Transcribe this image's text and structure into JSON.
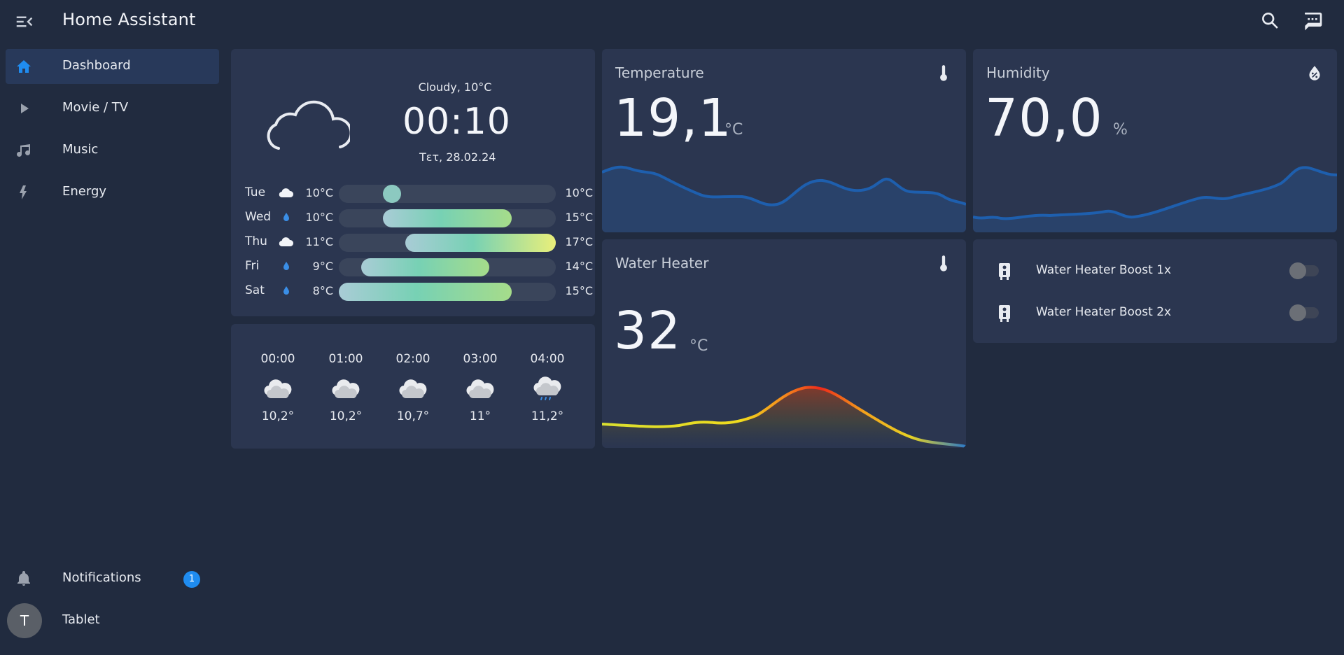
{
  "app": {
    "title": "Home Assistant"
  },
  "icons": {
    "menu": "menu-open-icon",
    "search": "search-icon",
    "assist": "chat-icon"
  },
  "sidebar": {
    "items": [
      {
        "label": "Dashboard",
        "icon": "home-icon",
        "active": true
      },
      {
        "label": "Movie / TV",
        "icon": "play-icon",
        "active": false
      },
      {
        "label": "Music",
        "icon": "music-icon",
        "active": false
      },
      {
        "label": "Energy",
        "icon": "lightning-icon",
        "active": false
      }
    ],
    "notifications": {
      "label": "Notifications",
      "count": "1"
    },
    "user": {
      "label": "Tablet",
      "initial": "T"
    }
  },
  "weather": {
    "condition": "Cloudy, 10°C",
    "time": "00:10",
    "date": "Τετ, 28.02.24",
    "forecast": [
      {
        "day": "Tue",
        "icon": "cloud-icon",
        "low": "10°C",
        "high": "10°C",
        "low_value": 10,
        "high_value": 10
      },
      {
        "day": "Wed",
        "icon": "rain-drop-icon",
        "low": "10°C",
        "high": "15°C",
        "low_value": 10,
        "high_value": 15
      },
      {
        "day": "Thu",
        "icon": "cloud-icon",
        "low": "11°C",
        "high": "17°C",
        "low_value": 11,
        "high_value": 17
      },
      {
        "day": "Fri",
        "icon": "rain-drop-icon",
        "low": "9°C",
        "high": "14°C",
        "low_value": 9,
        "high_value": 14
      },
      {
        "day": "Sat",
        "icon": "rain-drop-icon",
        "low": "8°C",
        "high": "15°C",
        "low_value": 8,
        "high_value": 15
      }
    ],
    "hourly": [
      {
        "time": "00:00",
        "icon": "cloudy-night-icon",
        "temp": "10,2°"
      },
      {
        "time": "01:00",
        "icon": "cloudy-night-icon",
        "temp": "10,2°"
      },
      {
        "time": "02:00",
        "icon": "cloudy-night-icon",
        "temp": "10,7°"
      },
      {
        "time": "03:00",
        "icon": "cloudy-night-icon",
        "temp": "11°"
      },
      {
        "time": "04:00",
        "icon": "rainy-cloud-icon",
        "temp": "11,2°"
      }
    ]
  },
  "temperature": {
    "title": "Temperature",
    "value": "19,1",
    "unit": "°C",
    "icon": "thermometer-icon",
    "line_color": "#1e5fae"
  },
  "humidity": {
    "title": "Humidity",
    "value": "70,0",
    "unit": "%",
    "icon": "water-percent-icon",
    "line_color": "#1e5fae"
  },
  "water_heater": {
    "title": "Water Heater",
    "value": "32",
    "unit": "°C",
    "icon": "thermometer-icon"
  },
  "switches": [
    {
      "label": "Water Heater Boost 1x",
      "icon": "water-boiler-icon",
      "on": false
    },
    {
      "label": "Water Heater Boost 2x",
      "icon": "water-boiler-icon",
      "on": false
    }
  ],
  "colors": {
    "background": "#212b3f",
    "card": "#2b3650",
    "accent": "#1f8cf0",
    "active_nav": "#28395a"
  }
}
